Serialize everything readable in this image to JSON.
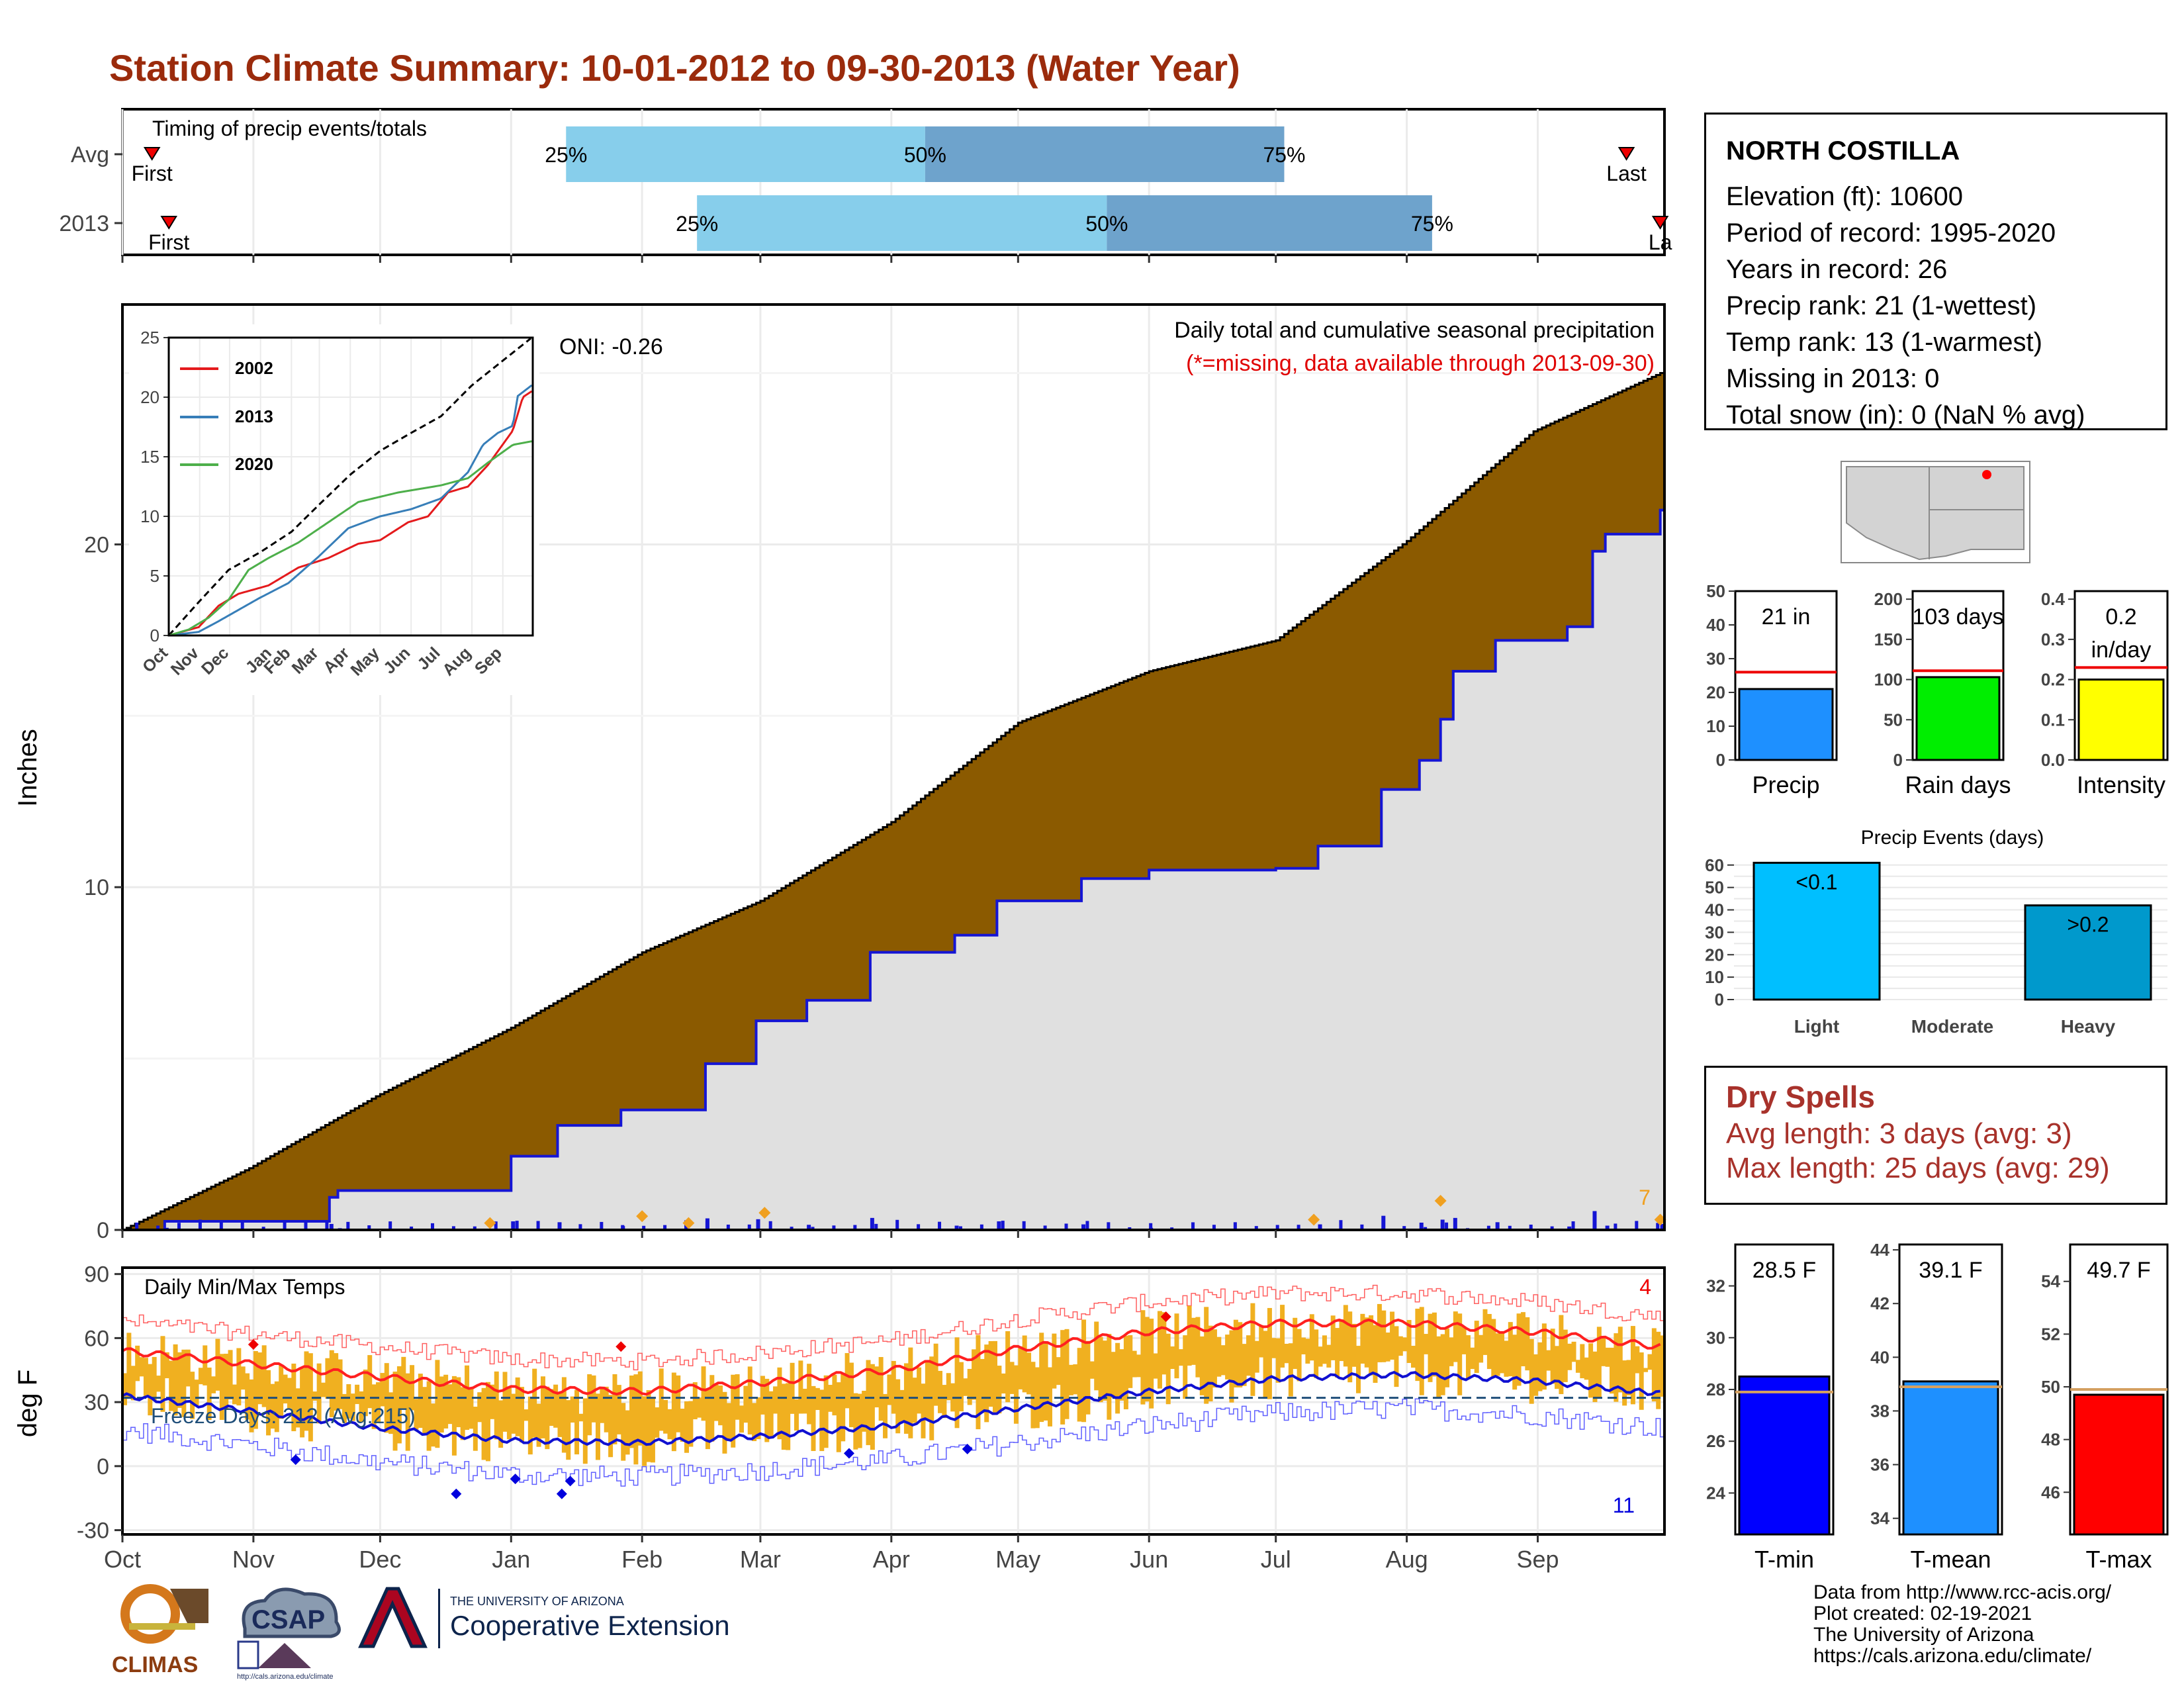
{
  "title": "Station Climate Summary: 10-01-2012 to 09-30-2013 (Water Year)",
  "colors": {
    "title": "#9b2b0c",
    "cum_avg_fill": "#8b5a00",
    "cum_year_fill": "#e0e0e0",
    "cum_year_line": "#1515d4",
    "daily_bar": "#1515d4",
    "timing_light": "#87ceeb",
    "timing_dark": "#6ea3cc",
    "temp_bar": "#f0b020",
    "tmax_line": "#ff2020",
    "tmin_line": "#1010d0",
    "dry_text": "#a8322b"
  },
  "timing": {
    "title": "Timing of precip events/totals",
    "rows": [
      {
        "label": "Avg",
        "first_label": "First",
        "last_label": "Last",
        "p25_label": "25%",
        "p50_label": "50%",
        "p75_label": "75%",
        "first_day": 7,
        "last_day": 356,
        "p25_day": 105,
        "p50_day": 190,
        "p75_day": 275
      },
      {
        "label": "2013",
        "first_label": "First",
        "last_label": "La",
        "p25_label": "25%",
        "p50_label": "50%",
        "p75_label": "75%",
        "first_day": 11,
        "last_day": 364,
        "p25_day": 136,
        "p50_day": 233,
        "p75_day": 310
      }
    ]
  },
  "precip_panel": {
    "ylabel": "Inches",
    "subtitle": "Daily total and cumulative seasonal precipitation",
    "missing_note": "(*=missing, data available through 2013-09-30)",
    "oni": "ONI: -0.26",
    "corner_count": "7"
  },
  "temp_panel": {
    "ylabel": "deg F",
    "label": "Daily Min/Max Temps",
    "freeze": "Freeze Days: 212 (Avg:215)",
    "top_count": "4",
    "bottom_count": "11"
  },
  "month_labels": [
    "Oct",
    "Nov",
    "Dec",
    "Jan",
    "Feb",
    "Mar",
    "Apr",
    "May",
    "Jun",
    "Jul",
    "Aug",
    "Sep"
  ],
  "station": {
    "name": "NORTH COSTILLA",
    "lines": [
      "Elevation (ft): 10600",
      "Period of record: 1995-2020",
      "Years in record: 26",
      "Precip rank: 21 (1-wettest)",
      "Temp rank: 13 (1-warmest)",
      "Missing in 2013: 0",
      "Total snow (in): 0 (NaN % avg)"
    ]
  },
  "dry_spells": {
    "title": "Dry Spells",
    "avg": "Avg length: 3 days (avg: 3)",
    "max": "Max length: 25 days (avg: 29)"
  },
  "credits": [
    "Data from http://www.rcc-acis.org/",
    "Plot created: 02-19-2021",
    "The University of Arizona",
    "https://cals.arizona.edu/climate/"
  ],
  "logos": {
    "climas": "CLIMAS",
    "csap": "CSAP",
    "csap_url": "http://cals.arizona.edu/climate",
    "ua_small": "THE UNIVERSITY OF ARIZONA",
    "ua_big": "Cooperative Extension"
  },
  "chart_data": [
    {
      "id": "timing",
      "type": "bar",
      "title": "Timing of precip events/totals",
      "categories": [
        "Avg",
        "2013"
      ],
      "note": "day-of-water-year positions of First, 25%, 50%, 75%, Last precipitation",
      "x_ticks": [
        "Oct",
        "Nov",
        "Dec",
        "Jan",
        "Feb",
        "Mar",
        "Apr",
        "May",
        "Jun",
        "Jul",
        "Aug",
        "Sep"
      ]
    },
    {
      "id": "cumulative_precip",
      "type": "area",
      "subtitle": "Daily total and cumulative seasonal precipitation",
      "ylabel": "Inches",
      "ylim": [
        0,
        27
      ],
      "yticks": [
        0,
        10,
        20
      ],
      "x_ticks": [
        "Oct",
        "Nov",
        "Dec",
        "Jan",
        "Feb",
        "Mar",
        "Apr",
        "May",
        "Jun",
        "Jul",
        "Aug",
        "Sep"
      ],
      "avg_cumulative_points": [
        [
          0,
          0
        ],
        [
          30,
          1.8
        ],
        [
          60,
          3.9
        ],
        [
          92,
          5.9
        ],
        [
          123,
          8.1
        ],
        [
          151,
          9.6
        ],
        [
          182,
          11.9
        ],
        [
          212,
          14.8
        ],
        [
          243,
          16.3
        ],
        [
          273,
          17.2
        ],
        [
          304,
          20.1
        ],
        [
          334,
          23.3
        ],
        [
          364,
          25.0
        ]
      ],
      "year_cumulative_steps": [
        [
          0,
          0
        ],
        [
          10,
          0.25
        ],
        [
          40,
          0.25
        ],
        [
          49,
          0.95
        ],
        [
          51,
          1.15
        ],
        [
          87,
          1.15
        ],
        [
          92,
          2.15
        ],
        [
          103,
          3.05
        ],
        [
          118,
          3.5
        ],
        [
          138,
          4.85
        ],
        [
          150,
          6.1
        ],
        [
          162,
          6.7
        ],
        [
          177,
          8.1
        ],
        [
          197,
          8.6
        ],
        [
          207,
          9.6
        ],
        [
          227,
          10.25
        ],
        [
          243,
          10.5
        ],
        [
          273,
          10.55
        ],
        [
          283,
          11.2
        ],
        [
          298,
          12.85
        ],
        [
          307,
          13.7
        ],
        [
          312,
          14.9
        ],
        [
          315,
          16.3
        ],
        [
          325,
          17.2
        ],
        [
          342,
          17.6
        ],
        [
          348,
          19.8
        ],
        [
          351,
          20.3
        ],
        [
          357,
          20.3
        ],
        [
          364,
          21.0
        ]
      ]
    },
    {
      "id": "daily_temps",
      "type": "bar",
      "label": "Daily Min/Max Temps",
      "ylabel": "deg F",
      "ylim": [
        -32,
        93
      ],
      "yticks": [
        -30,
        0,
        30,
        60,
        90
      ],
      "freeze_line": 32,
      "avg_tmax_points": [
        [
          0,
          54
        ],
        [
          30,
          48
        ],
        [
          60,
          42
        ],
        [
          92,
          36
        ],
        [
          123,
          35
        ],
        [
          151,
          39
        ],
        [
          182,
          45
        ],
        [
          212,
          55
        ],
        [
          243,
          63
        ],
        [
          273,
          67
        ],
        [
          304,
          67
        ],
        [
          334,
          63
        ],
        [
          364,
          56
        ]
      ],
      "avg_tmin_points": [
        [
          0,
          33
        ],
        [
          30,
          26
        ],
        [
          60,
          18
        ],
        [
          92,
          12
        ],
        [
          123,
          11
        ],
        [
          151,
          14
        ],
        [
          182,
          19
        ],
        [
          212,
          27
        ],
        [
          243,
          35
        ],
        [
          273,
          41
        ],
        [
          304,
          43
        ],
        [
          334,
          40
        ],
        [
          364,
          34
        ]
      ]
    },
    {
      "id": "precip_summary",
      "type": "bar",
      "categories": [
        "Precip",
        "Rain days",
        "Intensity"
      ],
      "values": [
        21,
        103,
        0.2
      ],
      "value_labels": [
        "21 in",
        "103 days",
        "0.2 in/day"
      ],
      "averages": [
        26,
        111,
        0.23
      ],
      "ylims": [
        [
          0,
          50
        ],
        [
          0,
          210
        ],
        [
          0,
          0.42
        ]
      ],
      "colors": [
        "#1e90ff",
        "#00ee00",
        "#ffff00"
      ]
    },
    {
      "id": "precip_events",
      "type": "bar",
      "title": "Precip Events (days)",
      "categories": [
        "Light",
        "Moderate",
        "Heavy"
      ],
      "values": [
        61,
        0,
        42
      ],
      "value_labels": [
        "<0.1",
        "",
        ">0.2"
      ],
      "ylim": [
        0,
        62
      ]
    },
    {
      "id": "temp_summary",
      "type": "bar",
      "categories": [
        "T-min",
        "T-mean",
        "T-max"
      ],
      "values": [
        28.5,
        39.1,
        49.7
      ],
      "value_labels": [
        "28.5 F",
        "39.1 F",
        "49.7 F"
      ],
      "averages": [
        27.9,
        38.9,
        49.9
      ],
      "ylims": [
        [
          22.4,
          33.6
        ],
        [
          33.4,
          44.2
        ],
        [
          44.4,
          55.4
        ]
      ],
      "colors": [
        "#0000ff",
        "#1e90ff",
        "#ff0000"
      ]
    }
  ]
}
